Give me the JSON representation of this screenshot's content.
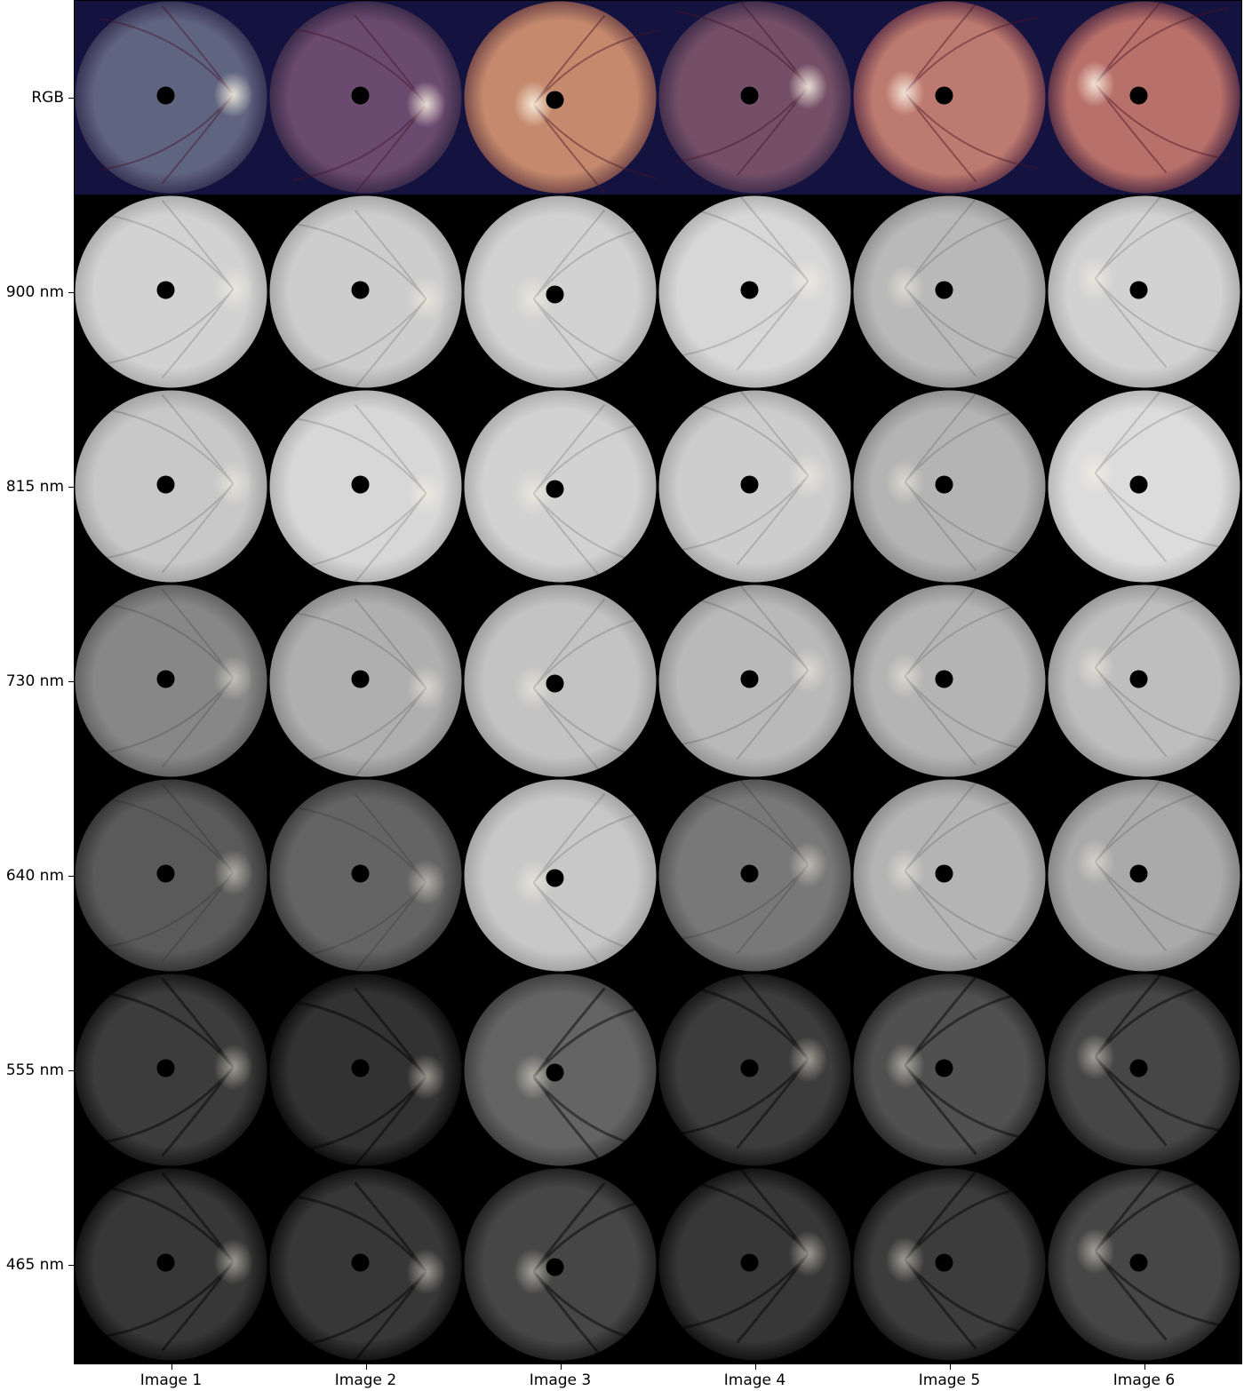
{
  "row_labels": [
    "RGB",
    "900 nm",
    "815 nm",
    "730 nm",
    "640 nm",
    "555 nm",
    "465 nm"
  ],
  "column_labels": [
    "Image 1",
    "Image 2",
    "Image 3",
    "Image 4",
    "Image 5",
    "Image 6"
  ],
  "colors": {
    "figure_background": "#ffffff",
    "grid_background": "#000000",
    "rgb_tile_background": "#14123f"
  }
}
